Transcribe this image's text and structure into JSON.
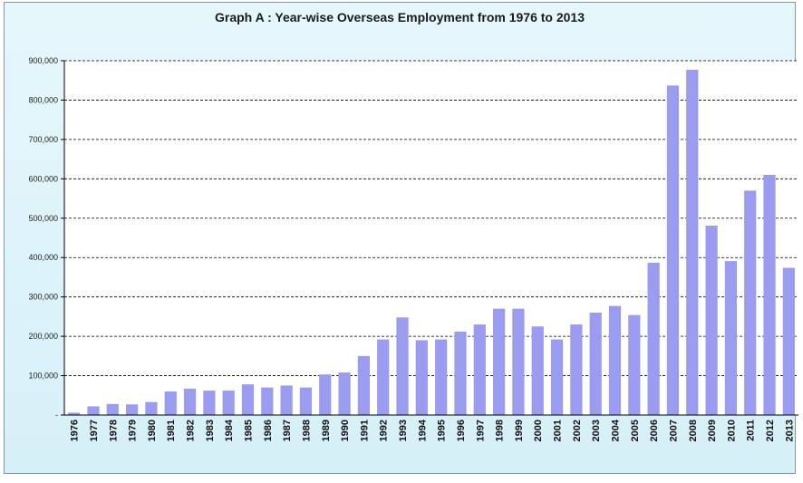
{
  "chart_data": {
    "type": "bar",
    "title": "Graph A : Year-wise Overseas Employment from 1976 to 2013",
    "xlabel": "",
    "ylabel": "",
    "ylim": [
      0,
      900000
    ],
    "yticks": [
      0,
      100000,
      200000,
      300000,
      400000,
      500000,
      600000,
      700000,
      800000,
      900000
    ],
    "ytick_labels": [
      "-",
      "100,000",
      "200,000",
      "300,000",
      "400,000",
      "500,000",
      "600,000",
      "700,000",
      "800,000",
      "900,000"
    ],
    "grid": "horizontal dashed",
    "bar_color": "#9b9bf0",
    "categories": [
      "1976",
      "1977",
      "1978",
      "1979",
      "1980",
      "1981",
      "1982",
      "1983",
      "1984",
      "1985",
      "1986",
      "1987",
      "1988",
      "1989",
      "1990",
      "1991",
      "1992",
      "1993",
      "1994",
      "1995",
      "1996",
      "1997",
      "1998",
      "1999",
      "2000",
      "2001",
      "2002",
      "2003",
      "2004",
      "2005",
      "2006",
      "2007",
      "2008",
      "2009",
      "2010",
      "2011",
      "2012",
      "2013"
    ],
    "values": [
      6000,
      22000,
      28000,
      27000,
      33000,
      60000,
      67000,
      62000,
      62000,
      78000,
      70000,
      75000,
      70000,
      103000,
      108000,
      150000,
      192000,
      248000,
      190000,
      192000,
      212000,
      230000,
      270000,
      270000,
      225000,
      192000,
      230000,
      260000,
      277000,
      254000,
      387000,
      837000,
      877000,
      481000,
      391000,
      570000,
      610000,
      374000
    ]
  }
}
